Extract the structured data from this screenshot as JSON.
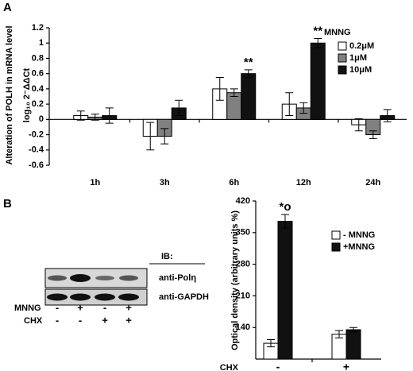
{
  "panel_labels": [
    "A",
    "B"
  ],
  "chart_data": [
    {
      "type": "bar",
      "y_label": "Alteration of POLH in mRNA level",
      "y_label_sub": "log₁₀ 2⁻ΔΔCt",
      "categories": [
        "1h",
        "3h",
        "6h",
        "12h",
        "24h"
      ],
      "legend_title": "MNNG",
      "series": [
        {
          "name": "0.2μM",
          "color": "#ffffff",
          "values": [
            0.05,
            -0.22,
            0.4,
            0.2,
            -0.07
          ],
          "errors": [
            0.06,
            0.18,
            0.15,
            0.15,
            0.08
          ]
        },
        {
          "name": "1μM",
          "color": "#808080",
          "values": [
            0.03,
            -0.22,
            0.35,
            0.15,
            -0.2
          ],
          "errors": [
            0.04,
            0.1,
            0.05,
            0.07,
            0.05
          ]
        },
        {
          "name": "10μM",
          "color": "#111111",
          "values": [
            0.05,
            0.15,
            0.6,
            1.0,
            0.05
          ],
          "errors": [
            0.1,
            0.1,
            0.05,
            0.06,
            0.08
          ]
        }
      ],
      "annotations": [
        "**",
        "**"
      ],
      "ylim": [
        -0.6,
        1.2
      ],
      "yticks": [
        -0.6,
        -0.4,
        -0.2,
        0,
        0.2,
        0.4,
        0.6,
        0.8,
        1,
        1.2
      ]
    },
    {
      "type": "bar",
      "y_label": "Optical density (arbitrary units %)",
      "x_label": "CHX",
      "categories": [
        "-",
        "+"
      ],
      "series": [
        {
          "name": "- MNNG",
          "color": "#ffffff",
          "values": [
            105,
            125
          ],
          "errors": [
            8,
            8
          ]
        },
        {
          "name": "+MNNG",
          "color": "#111111",
          "values": [
            375,
            135
          ],
          "errors": [
            15,
            5
          ]
        }
      ],
      "annotations": [
        "*o"
      ],
      "ylim": [
        70,
        420
      ],
      "yticks": [
        140,
        210,
        280,
        350,
        420
      ],
      "legend_position": "top-right"
    }
  ],
  "blot": {
    "ib_label": "IB:",
    "rows": [
      "anti-Polη",
      "anti-GAPDH"
    ],
    "treatments": [
      {
        "name": "MNNG",
        "signs": [
          "-",
          "+",
          "-",
          "+"
        ]
      },
      {
        "name": "CHX",
        "signs": [
          "-",
          "-",
          "+",
          "+"
        ]
      }
    ]
  }
}
